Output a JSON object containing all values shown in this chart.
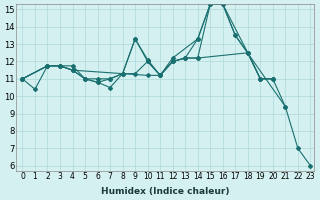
{
  "xlabel": "Humidex (Indice chaleur)",
  "bg_color": "#d4f0f0",
  "grid_color": "#b0d8d8",
  "line_color": "#1a7070",
  "xlim": [
    -0.5,
    23.3
  ],
  "ylim": [
    5.7,
    15.3
  ],
  "xticks": [
    0,
    1,
    2,
    3,
    4,
    5,
    6,
    7,
    8,
    9,
    10,
    11,
    12,
    13,
    14,
    15,
    16,
    17,
    18,
    19,
    20,
    21,
    22,
    23
  ],
  "yticks": [
    6,
    7,
    8,
    9,
    10,
    11,
    12,
    13,
    14,
    15
  ],
  "series": [
    {
      "x": [
        0,
        1,
        2,
        3,
        4,
        5,
        6,
        7,
        8,
        9,
        10,
        11,
        12,
        14,
        15,
        16,
        17,
        21,
        22,
        23
      ],
      "y": [
        11,
        10.4,
        11.75,
        11.75,
        11.5,
        11.0,
        10.8,
        10.5,
        11.3,
        13.3,
        12.1,
        11.2,
        12.2,
        13.3,
        15.3,
        15.3,
        13.5,
        9.4,
        7.0,
        6.0
      ]
    },
    {
      "x": [
        0,
        2,
        3,
        4,
        5,
        6,
        7,
        8,
        9,
        10,
        11,
        12,
        13,
        14,
        15,
        16,
        17,
        18,
        19,
        20,
        21
      ],
      "y": [
        11,
        11.75,
        11.75,
        11.75,
        11.0,
        10.8,
        11.0,
        11.3,
        13.3,
        12.0,
        11.2,
        12.0,
        12.2,
        13.3,
        15.3,
        15.3,
        13.5,
        12.5,
        11.0,
        11.0,
        9.4
      ]
    },
    {
      "x": [
        0,
        2,
        3,
        4,
        5,
        6,
        7,
        8,
        9,
        10,
        11,
        12,
        13,
        14,
        18,
        19,
        20
      ],
      "y": [
        11,
        11.75,
        11.75,
        11.5,
        11.0,
        11.0,
        11.0,
        11.3,
        11.3,
        12.0,
        11.2,
        12.0,
        12.2,
        12.2,
        12.5,
        11.0,
        11.0
      ]
    },
    {
      "x": [
        0,
        2,
        3,
        4,
        10,
        11,
        12,
        13,
        14,
        15,
        16,
        18,
        19,
        20
      ],
      "y": [
        11,
        11.75,
        11.75,
        11.5,
        11.2,
        11.2,
        12.0,
        12.2,
        12.2,
        15.3,
        15.3,
        12.5,
        11.0,
        11.0
      ]
    }
  ]
}
